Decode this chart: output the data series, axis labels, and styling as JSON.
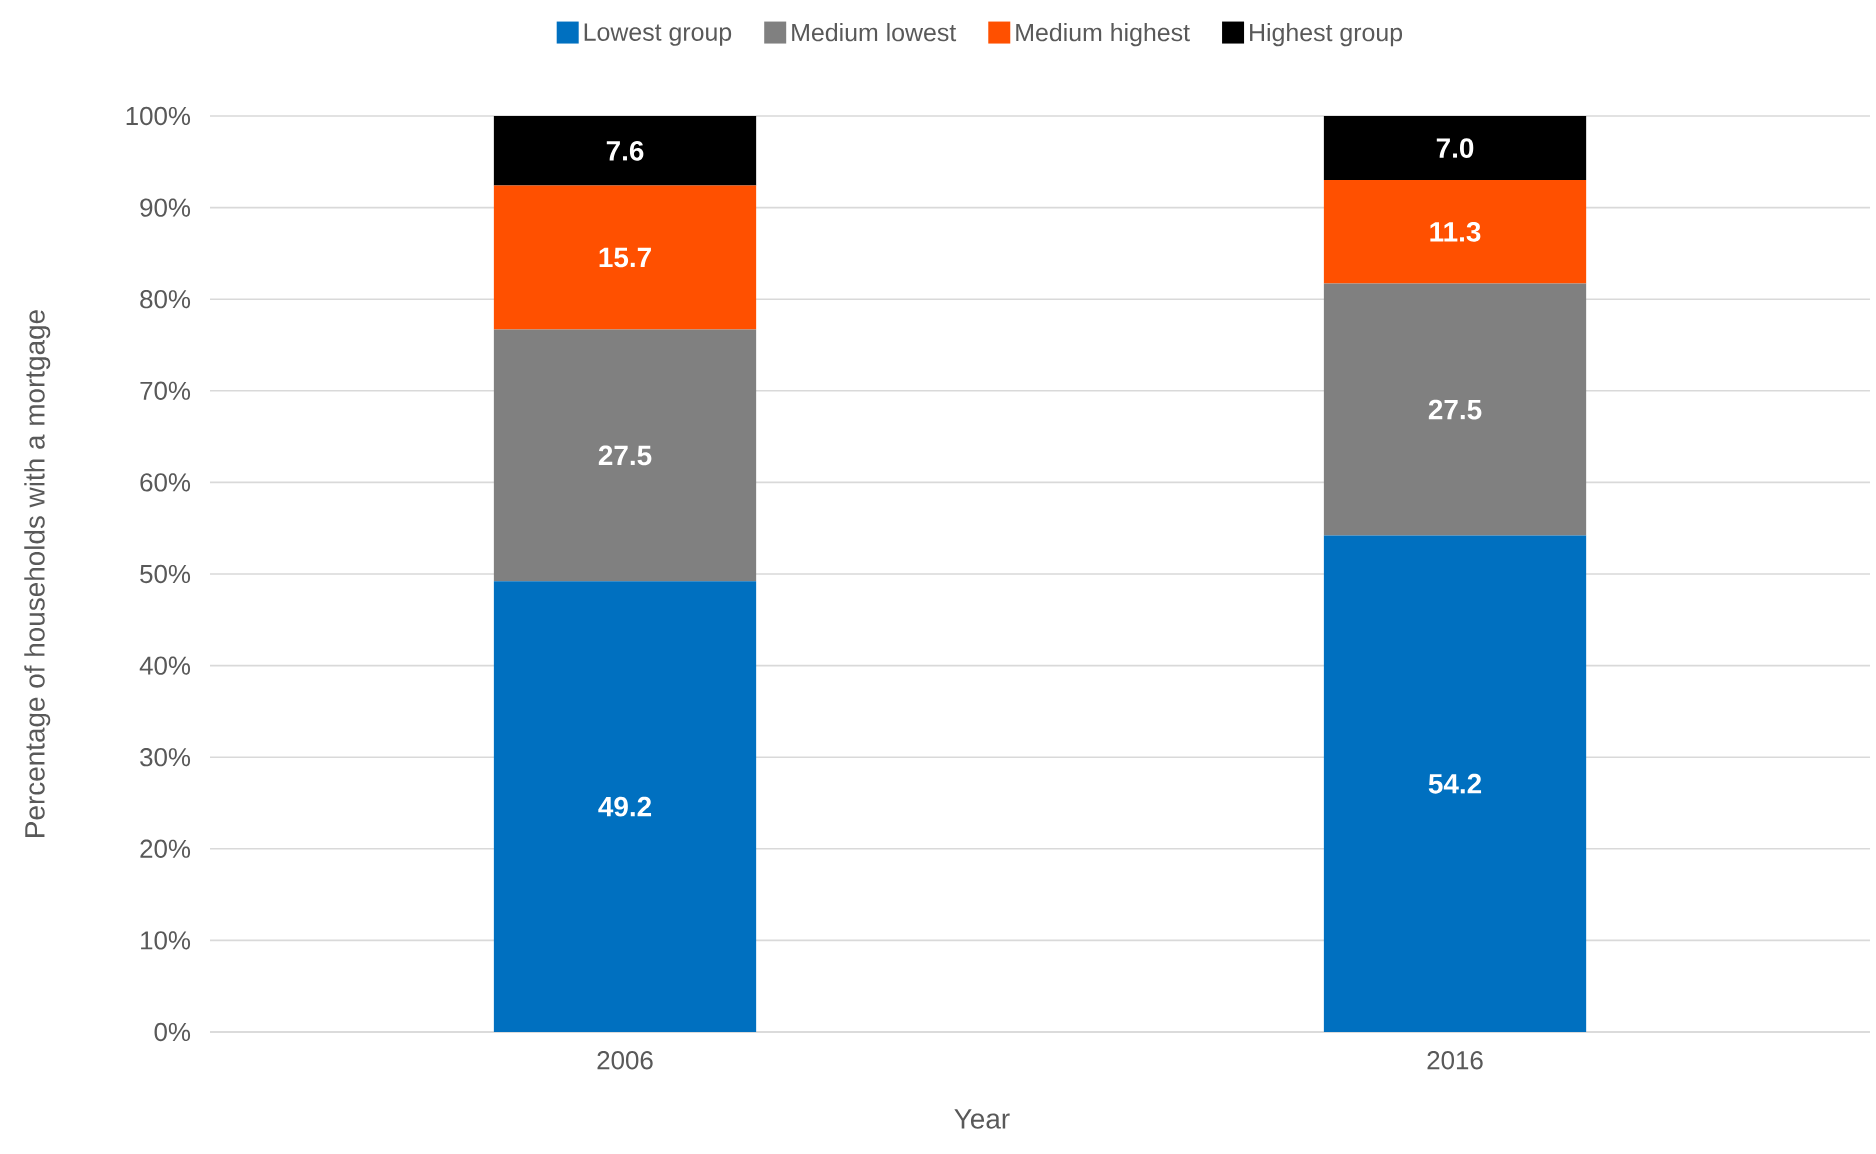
{
  "chart_data": {
    "type": "bar",
    "xlabel": "Year",
    "ylabel": "Percentage of households with a mortgage",
    "categories": [
      "2006",
      "2016"
    ],
    "stacked": true,
    "series": [
      {
        "name": "Lowest group",
        "color": "#0070c0",
        "values": [
          49.2,
          54.2
        ],
        "value_labels": [
          "49.2",
          "54.2"
        ]
      },
      {
        "name": "Medium lowest",
        "color": "#808080",
        "values": [
          27.5,
          27.5
        ],
        "value_labels": [
          "27.5",
          "27.5"
        ]
      },
      {
        "name": "Medium highest",
        "color": "#ff5000",
        "values": [
          15.7,
          11.3
        ],
        "value_labels": [
          "15.7",
          "11.3"
        ]
      },
      {
        "name": "Highest group",
        "color": "#000000",
        "values": [
          7.6,
          7.0
        ],
        "value_labels": [
          "7.6",
          "7.0"
        ]
      }
    ],
    "ylim": [
      0,
      100
    ],
    "yticks": [
      {
        "value": 0,
        "label": "0%"
      },
      {
        "value": 10,
        "label": "10%"
      },
      {
        "value": 20,
        "label": "20%"
      },
      {
        "value": 30,
        "label": "30%"
      },
      {
        "value": 40,
        "label": "40%"
      },
      {
        "value": 50,
        "label": "50%"
      },
      {
        "value": 60,
        "label": "60%"
      },
      {
        "value": 70,
        "label": "70%"
      },
      {
        "value": 80,
        "label": "80%"
      },
      {
        "value": 90,
        "label": "90%"
      },
      {
        "value": 100,
        "label": "100%"
      }
    ],
    "grid": "y",
    "legend": "top"
  }
}
